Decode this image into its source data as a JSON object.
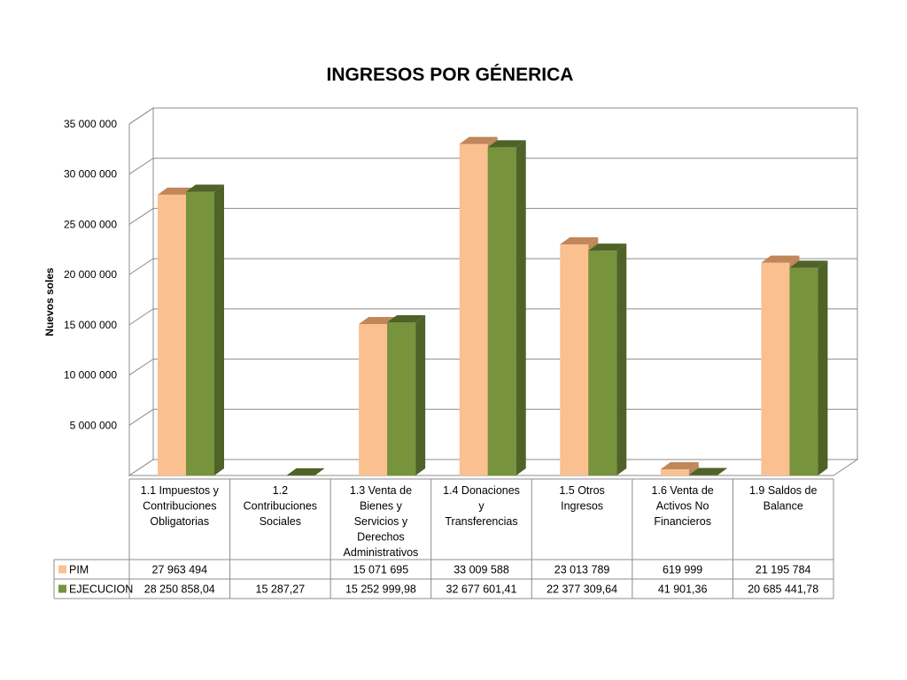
{
  "chart_data": {
    "type": "bar",
    "title": "INGRESOS POR GÉNERICA",
    "ylabel": "Nuevos soles",
    "xlabel": "",
    "ylim": [
      0,
      35000000
    ],
    "yticks": [
      5000000,
      10000000,
      15000000,
      20000000,
      25000000,
      30000000,
      35000000
    ],
    "ytick_labels": [
      "5 000 000",
      "10 000 000",
      "15 000 000",
      "20 000 000",
      "25 000 000",
      "30 000 000",
      "35 000 000"
    ],
    "grid": true,
    "legend": "data-table",
    "three_d": true,
    "categories": [
      [
        "1.1 Impuestos y",
        "Contribuciones",
        "Obligatorias"
      ],
      [
        "1.2",
        "Contribuciones",
        "Sociales"
      ],
      [
        "1.3 Venta de",
        "Bienes y",
        "Servicios y",
        "Derechos",
        "Administrativos"
      ],
      [
        "1.4 Donaciones",
        "y",
        "Transferencias"
      ],
      [
        "1.5 Otros",
        "Ingresos"
      ],
      [
        "1.6 Venta de",
        "Activos No",
        "Financieros"
      ],
      [
        "1.9 Saldos de",
        "Balance"
      ]
    ],
    "series": [
      {
        "name": "PIM",
        "color": "#FAC090",
        "side_color": "#C0875A",
        "values": [
          27963494,
          null,
          15071695,
          33009588,
          23013789,
          619999,
          21195784
        ],
        "labels": [
          "27 963 494",
          "",
          "15 071 695",
          "33 009 588",
          "23 013 789",
          "619 999",
          "21 195 784"
        ]
      },
      {
        "name": "EJECUCION",
        "color": "#77933C",
        "side_color": "#4F6228",
        "values": [
          28250858.04,
          15287.27,
          15252999.98,
          32677601.41,
          22377309.64,
          41901.36,
          20685441.78
        ],
        "labels": [
          "28 250 858,04",
          "15 287,27",
          "15 252 999,98",
          "32 677 601,41",
          "22 377 309,64",
          "41 901,36",
          "20 685 441,78"
        ]
      }
    ]
  }
}
